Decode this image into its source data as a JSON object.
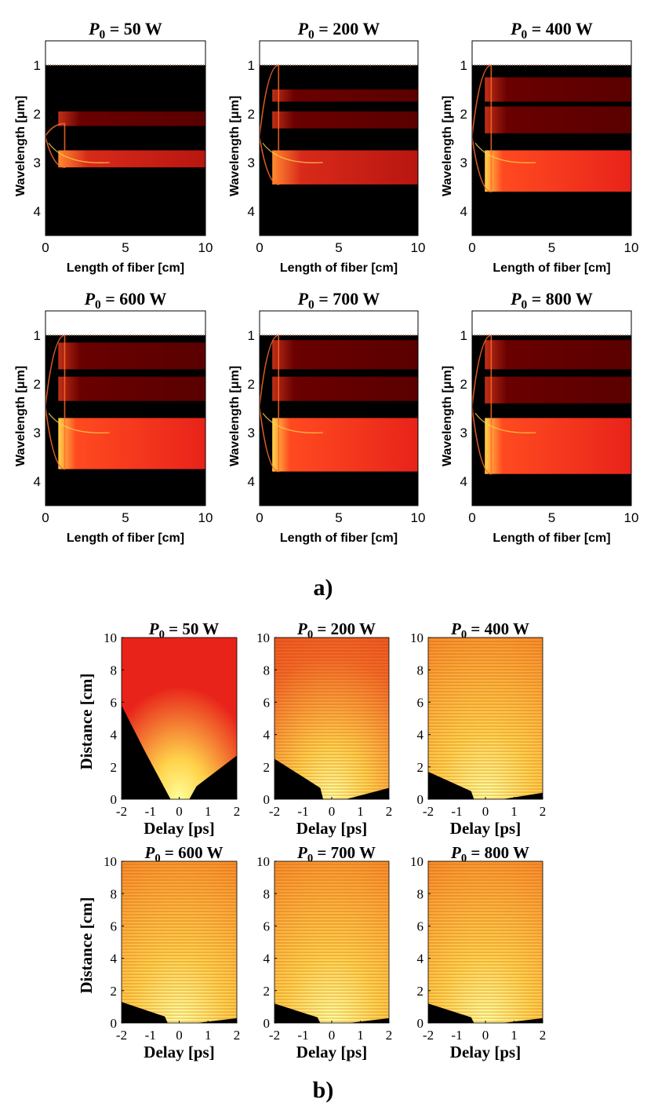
{
  "figure": {
    "panel_a_label": "a)",
    "panel_b_label": "b)"
  },
  "colors": {
    "background": "#000000",
    "low_intensity": "#6a0000",
    "mid_intensity": "#e8231a",
    "high_intensity": "#ffd24a",
    "peak_intensity": "#ffff9a"
  },
  "chart_data": [
    {
      "panel": "a",
      "type": "heatmap",
      "title_prefix": "P",
      "title_subscript": "0",
      "title_value": " = 50 W",
      "xlabel": "Length of fiber [cm]",
      "ylabel": "Wavelength [μm]",
      "xlim": [
        0,
        10
      ],
      "ylim": [
        4.5,
        0.5
      ],
      "xticks": [
        0,
        5,
        10
      ],
      "yticks": [
        1,
        2,
        3,
        4
      ],
      "spectrum_edges_um": [
        2.2,
        3.1
      ],
      "bands": [
        {
          "y0": 1.95,
          "y1": 2.25,
          "level": "low"
        },
        {
          "y0": 2.75,
          "y1": 3.1,
          "level": "mid"
        }
      ]
    },
    {
      "panel": "a",
      "type": "heatmap",
      "title_prefix": "P",
      "title_subscript": "0",
      "title_value": " = 200 W",
      "xlabel": "Length of fiber [cm]",
      "ylabel": "Wavelength [μm]",
      "xlim": [
        0,
        10
      ],
      "ylim": [
        4.5,
        0.5
      ],
      "xticks": [
        0,
        5,
        10
      ],
      "yticks": [
        1,
        2,
        3,
        4
      ],
      "spectrum_edges_um": [
        1.0,
        3.45
      ],
      "bands": [
        {
          "y0": 1.5,
          "y1": 1.75,
          "level": "low"
        },
        {
          "y0": 1.95,
          "y1": 2.3,
          "level": "low"
        },
        {
          "y0": 2.75,
          "y1": 3.45,
          "level": "mid"
        }
      ]
    },
    {
      "panel": "a",
      "type": "heatmap",
      "title_prefix": "P",
      "title_subscript": "0",
      "title_value": " = 400 W",
      "xlabel": "Length of fiber [cm]",
      "ylabel": "Wavelength [μm]",
      "xlim": [
        0,
        10
      ],
      "ylim": [
        4.5,
        0.5
      ],
      "xticks": [
        0,
        5,
        10
      ],
      "yticks": [
        1,
        2,
        3,
        4
      ],
      "spectrum_edges_um": [
        1.0,
        3.6
      ],
      "bands": [
        {
          "y0": 1.25,
          "y1": 1.75,
          "level": "low"
        },
        {
          "y0": 1.85,
          "y1": 2.4,
          "level": "low"
        },
        {
          "y0": 2.75,
          "y1": 3.6,
          "level": "high"
        }
      ]
    },
    {
      "panel": "a",
      "type": "heatmap",
      "title_prefix": "P",
      "title_subscript": "0",
      "title_value": " = 600 W",
      "xlabel": "Length of fiber [cm]",
      "ylabel": "Wavelength [μm]",
      "xlim": [
        0,
        10
      ],
      "ylim": [
        4.5,
        0.5
      ],
      "xticks": [
        0,
        5,
        10
      ],
      "yticks": [
        1,
        2,
        3,
        4
      ],
      "spectrum_edges_um": [
        1.0,
        3.75
      ],
      "bands": [
        {
          "y0": 1.15,
          "y1": 1.7,
          "level": "low"
        },
        {
          "y0": 1.85,
          "y1": 2.35,
          "level": "low"
        },
        {
          "y0": 2.7,
          "y1": 3.75,
          "level": "high"
        }
      ]
    },
    {
      "panel": "a",
      "type": "heatmap",
      "title_prefix": "P",
      "title_subscript": "0",
      "title_value": " = 700 W",
      "xlabel": "Length of fiber [cm]",
      "ylabel": "Wavelength [μm]",
      "xlim": [
        0,
        10
      ],
      "ylim": [
        4.5,
        0.5
      ],
      "xticks": [
        0,
        5,
        10
      ],
      "yticks": [
        1,
        2,
        3,
        4
      ],
      "spectrum_edges_um": [
        1.0,
        3.8
      ],
      "bands": [
        {
          "y0": 1.1,
          "y1": 1.7,
          "level": "low"
        },
        {
          "y0": 1.85,
          "y1": 2.35,
          "level": "low"
        },
        {
          "y0": 2.7,
          "y1": 3.8,
          "level": "high"
        }
      ]
    },
    {
      "panel": "a",
      "type": "heatmap",
      "title_prefix": "P",
      "title_subscript": "0",
      "title_value": " = 800 W",
      "xlabel": "Length of fiber [cm]",
      "ylabel": "Wavelength [μm]",
      "xlim": [
        0,
        10
      ],
      "ylim": [
        4.5,
        0.5
      ],
      "xticks": [
        0,
        5,
        10
      ],
      "yticks": [
        1,
        2,
        3,
        4
      ],
      "spectrum_edges_um": [
        1.0,
        3.85
      ],
      "bands": [
        {
          "y0": 1.1,
          "y1": 1.7,
          "level": "low"
        },
        {
          "y0": 1.85,
          "y1": 2.4,
          "level": "low"
        },
        {
          "y0": 2.7,
          "y1": 3.85,
          "level": "high"
        }
      ]
    },
    {
      "panel": "b",
      "type": "heatmap",
      "title_prefix": "P",
      "title_subscript": "0",
      "title_value": " = 50 W",
      "xlabel": "Delay [ps]",
      "ylabel": "Distance [cm]",
      "xlim": [
        -2,
        2
      ],
      "ylim": [
        0,
        10
      ],
      "xticks": [
        -2,
        -1,
        0,
        1,
        2
      ],
      "yticks": [
        0,
        2,
        4,
        6,
        8,
        10
      ],
      "dark_region_left": [
        [
          -2,
          5.8
        ],
        [
          -1.2,
          3.0
        ],
        [
          -0.6,
          1.0
        ],
        [
          -0.3,
          0
        ]
      ],
      "dark_region_right": [
        [
          0.35,
          0
        ],
        [
          0.6,
          0.8
        ],
        [
          2,
          2.7
        ]
      ],
      "fill_level": "mid"
    },
    {
      "panel": "b",
      "type": "heatmap",
      "title_prefix": "P",
      "title_subscript": "0",
      "title_value": " = 200 W",
      "xlabel": "Delay [ps]",
      "ylabel": "Distance [cm]",
      "xlim": [
        -2,
        2
      ],
      "ylim": [
        0,
        10
      ],
      "xticks": [
        -2,
        -1,
        0,
        1,
        2
      ],
      "yticks": [
        0,
        2,
        4,
        6,
        8,
        10
      ],
      "dark_region_left": [
        [
          -2,
          2.5
        ],
        [
          -0.4,
          0.7
        ],
        [
          -0.3,
          0
        ]
      ],
      "dark_region_right": [
        [
          0.5,
          0
        ],
        [
          2,
          0.7
        ]
      ],
      "fill_level": "mid-high"
    },
    {
      "panel": "b",
      "type": "heatmap",
      "title_prefix": "P",
      "title_subscript": "0",
      "title_value": " = 400 W",
      "xlabel": "Delay [ps]",
      "ylabel": "Distance [cm]",
      "xlim": [
        -2,
        2
      ],
      "ylim": [
        0,
        10
      ],
      "xticks": [
        -2,
        -1,
        0,
        1,
        2
      ],
      "yticks": [
        0,
        2,
        4,
        6,
        8,
        10
      ],
      "dark_region_left": [
        [
          -2,
          1.7
        ],
        [
          -0.5,
          0.5
        ],
        [
          -0.4,
          0
        ]
      ],
      "dark_region_right": [
        [
          0.6,
          0
        ],
        [
          2,
          0.4
        ]
      ],
      "fill_level": "high"
    },
    {
      "panel": "b",
      "type": "heatmap",
      "title_prefix": "P",
      "title_subscript": "0",
      "title_value": " = 600 W",
      "xlabel": "Delay [ps]",
      "ylabel": "Distance [cm]",
      "xlim": [
        -2,
        2
      ],
      "ylim": [
        0,
        10
      ],
      "xticks": [
        -2,
        -1,
        0,
        1,
        2
      ],
      "yticks": [
        0,
        2,
        4,
        6,
        8,
        10
      ],
      "dark_region_left": [
        [
          -2,
          1.3
        ],
        [
          -0.5,
          0.4
        ],
        [
          -0.4,
          0
        ]
      ],
      "dark_region_right": [
        [
          0.6,
          0
        ],
        [
          2,
          0.3
        ]
      ],
      "fill_level": "high"
    },
    {
      "panel": "b",
      "type": "heatmap",
      "title_prefix": "P",
      "title_subscript": "0",
      "title_value": " = 700 W",
      "xlabel": "Delay [ps]",
      "ylabel": "Distance [cm]",
      "xlim": [
        -2,
        2
      ],
      "ylim": [
        0,
        10
      ],
      "xticks": [
        -2,
        -1,
        0,
        1,
        2
      ],
      "yticks": [
        0,
        2,
        4,
        6,
        8,
        10
      ],
      "dark_region_left": [
        [
          -2,
          1.2
        ],
        [
          -0.5,
          0.35
        ],
        [
          -0.4,
          0
        ]
      ],
      "dark_region_right": [
        [
          0.6,
          0
        ],
        [
          2,
          0.3
        ]
      ],
      "fill_level": "high"
    },
    {
      "panel": "b",
      "type": "heatmap",
      "title_prefix": "P",
      "title_subscript": "0",
      "title_value": " = 800 W",
      "xlabel": "Delay [ps]",
      "ylabel": "Distance [cm]",
      "xlim": [
        -2,
        2
      ],
      "ylim": [
        0,
        10
      ],
      "xticks": [
        -2,
        -1,
        0,
        1,
        2
      ],
      "yticks": [
        0,
        2,
        4,
        6,
        8,
        10
      ],
      "dark_region_left": [
        [
          -2,
          1.2
        ],
        [
          -0.5,
          0.35
        ],
        [
          -0.4,
          0
        ]
      ],
      "dark_region_right": [
        [
          0.6,
          0
        ],
        [
          2,
          0.3
        ]
      ],
      "fill_level": "high"
    }
  ]
}
